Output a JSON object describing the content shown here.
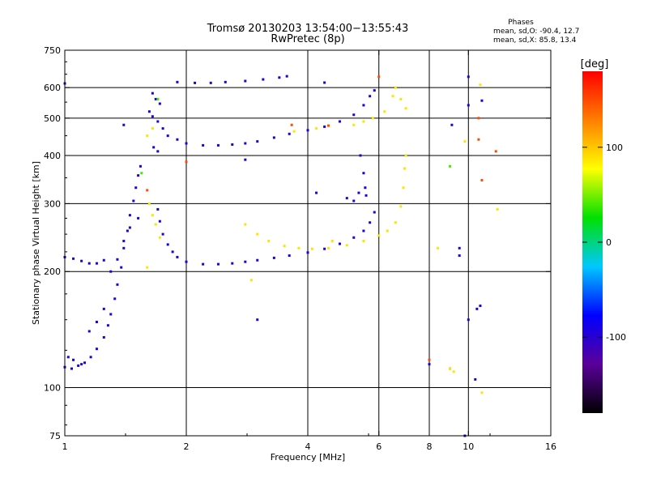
{
  "chart_data": {
    "type": "scatter",
    "title": "Tromsø 20130203 13:54:00−13:55:43",
    "subtitle": "RwPretec (8p)",
    "xlabel": "Frequency [MHz]",
    "ylabel": "Stationary phase Virtual Height [km]",
    "x_scale": "log2",
    "y_scale": "log",
    "xlim": [
      1,
      16
    ],
    "ylim": [
      75,
      750
    ],
    "x_ticks": [
      1,
      2,
      4,
      6,
      8,
      10,
      16
    ],
    "y_ticks": [
      75,
      100,
      200,
      300,
      400,
      500,
      600,
      750
    ],
    "x_grid": [
      2,
      4,
      6,
      8,
      10
    ],
    "y_grid": [
      100,
      200,
      300,
      400,
      500,
      600
    ],
    "grid": true,
    "colorbar": {
      "label": "[deg]",
      "ticks": [
        100,
        0,
        -100
      ],
      "range": [
        -180,
        180
      ],
      "colors": [
        "#000000",
        "#5a0098",
        "#0000ff",
        "#00c8ff",
        "#00e000",
        "#ffff00",
        "#ff7f00",
        "#ff0000"
      ]
    },
    "phases": {
      "title": "Phases",
      "o_line": "mean, sd,O: -90.4, 12.7",
      "x_line": "mean, sd,X: 85.8, 13.4"
    },
    "series": [
      {
        "phase": -95,
        "color_note": "blue (O mode)",
        "points": [
          [
            1.0,
            113
          ],
          [
            1.04,
            112
          ],
          [
            1.08,
            114
          ],
          [
            1.12,
            116
          ],
          [
            1.16,
            120
          ],
          [
            1.2,
            126
          ],
          [
            1.25,
            135
          ],
          [
            1.28,
            145
          ],
          [
            1.3,
            155
          ],
          [
            1.33,
            170
          ],
          [
            1.35,
            185
          ],
          [
            1.38,
            205
          ],
          [
            1.4,
            230
          ],
          [
            1.43,
            255
          ],
          [
            1.45,
            280
          ],
          [
            1.48,
            305
          ],
          [
            1.5,
            330
          ],
          [
            1.52,
            355
          ],
          [
            1.54,
            375
          ],
          [
            1.52,
            275
          ],
          [
            1.45,
            260
          ],
          [
            1.4,
            240
          ],
          [
            1.35,
            215
          ],
          [
            1.3,
            200
          ],
          [
            1.0,
            218
          ],
          [
            1.05,
            216
          ],
          [
            1.1,
            213
          ],
          [
            1.15,
            210
          ],
          [
            1.2,
            210
          ],
          [
            1.25,
            214
          ],
          [
            1.7,
            290
          ],
          [
            1.72,
            270
          ],
          [
            1.75,
            250
          ],
          [
            1.8,
            235
          ],
          [
            1.85,
            225
          ],
          [
            1.9,
            218
          ],
          [
            2.0,
            212
          ],
          [
            2.2,
            209
          ],
          [
            2.4,
            209
          ],
          [
            2.6,
            210
          ],
          [
            2.8,
            212
          ],
          [
            3.0,
            214
          ],
          [
            3.3,
            217
          ],
          [
            3.6,
            220
          ],
          [
            4.0,
            224
          ],
          [
            4.4,
            229
          ],
          [
            4.8,
            236
          ],
          [
            5.2,
            245
          ],
          [
            5.5,
            255
          ],
          [
            5.7,
            268
          ],
          [
            5.85,
            285
          ],
          [
            5.4,
            400
          ],
          [
            5.5,
            360
          ],
          [
            5.55,
            330
          ],
          [
            5.58,
            315
          ],
          [
            5.2,
            305
          ],
          [
            5.35,
            320
          ],
          [
            5.0,
            310
          ],
          [
            1.62,
            520
          ],
          [
            1.65,
            505
          ],
          [
            1.7,
            490
          ],
          [
            1.75,
            470
          ],
          [
            1.8,
            450
          ],
          [
            1.9,
            440
          ],
          [
            2.0,
            430
          ],
          [
            2.2,
            425
          ],
          [
            2.4,
            425
          ],
          [
            2.6,
            427
          ],
          [
            2.8,
            430
          ],
          [
            3.0,
            435
          ],
          [
            3.3,
            445
          ],
          [
            3.6,
            455
          ],
          [
            4.0,
            465
          ],
          [
            4.4,
            475
          ],
          [
            4.8,
            490
          ],
          [
            5.2,
            510
          ],
          [
            5.5,
            540
          ],
          [
            5.7,
            570
          ],
          [
            5.85,
            590
          ],
          [
            1.65,
            580
          ],
          [
            1.68,
            560
          ],
          [
            1.72,
            545
          ],
          [
            1.9,
            620
          ],
          [
            2.1,
            617
          ],
          [
            2.3,
            617
          ],
          [
            2.5,
            620
          ],
          [
            2.8,
            624
          ],
          [
            3.1,
            630
          ],
          [
            3.4,
            637
          ],
          [
            3.55,
            642
          ],
          [
            1.0,
            615
          ],
          [
            4.4,
            618
          ],
          [
            1.4,
            480
          ],
          [
            1.66,
            420
          ],
          [
            1.7,
            410
          ],
          [
            1.02,
            120
          ],
          [
            1.05,
            118
          ],
          [
            1.1,
            115
          ],
          [
            1.15,
            140
          ],
          [
            1.2,
            148
          ],
          [
            1.25,
            160
          ],
          [
            10.0,
            640
          ],
          [
            10.0,
            540
          ],
          [
            10.8,
            555
          ],
          [
            9.1,
            480
          ],
          [
            8.0,
            115
          ],
          [
            9.0,
            112
          ],
          [
            9.5,
            230
          ],
          [
            9.5,
            220
          ],
          [
            10.0,
            150
          ],
          [
            10.5,
            160
          ],
          [
            10.7,
            163
          ],
          [
            10.4,
            105
          ],
          [
            9.8,
            75
          ],
          [
            4.2,
            320
          ],
          [
            2.8,
            390
          ],
          [
            3.0,
            150
          ]
        ]
      },
      {
        "phase": 88,
        "color_note": "yellow (X mode)",
        "points": [
          [
            2.8,
            265
          ],
          [
            3.0,
            250
          ],
          [
            3.2,
            240
          ],
          [
            3.5,
            233
          ],
          [
            3.8,
            230
          ],
          [
            4.1,
            229
          ],
          [
            4.5,
            230
          ],
          [
            5.0,
            234
          ],
          [
            5.5,
            240
          ],
          [
            6.0,
            248
          ],
          [
            6.3,
            255
          ],
          [
            6.6,
            268
          ],
          [
            6.8,
            295
          ],
          [
            6.9,
            330
          ],
          [
            6.95,
            370
          ],
          [
            7.0,
            400
          ],
          [
            1.65,
            280
          ],
          [
            1.68,
            265
          ],
          [
            1.72,
            245
          ],
          [
            1.62,
            300
          ],
          [
            5.2,
            480
          ],
          [
            5.5,
            490
          ],
          [
            5.8,
            500
          ],
          [
            6.2,
            520
          ],
          [
            6.5,
            570
          ],
          [
            6.6,
            600
          ],
          [
            7.0,
            530
          ],
          [
            6.8,
            560
          ],
          [
            1.6,
            450
          ],
          [
            1.65,
            470
          ],
          [
            2.9,
            190
          ],
          [
            4.6,
            240
          ],
          [
            3.7,
            462
          ],
          [
            4.2,
            470
          ],
          [
            9.2,
            110
          ],
          [
            9.8,
            435
          ],
          [
            8.4,
            230
          ],
          [
            10.8,
            97
          ],
          [
            11.8,
            290
          ],
          [
            10.7,
            610
          ],
          [
            9.0,
            112
          ],
          [
            1.6,
            205
          ]
        ]
      },
      {
        "phase": 40,
        "color_note": "green",
        "points": [
          [
            9.0,
            375
          ],
          [
            1.55,
            360
          ],
          [
            1.7,
            560
          ]
        ]
      },
      {
        "phase": 150,
        "color_note": "orange-red",
        "points": [
          [
            3.65,
            480
          ],
          [
            6.0,
            640
          ],
          [
            10.6,
            500
          ],
          [
            10.6,
            440
          ],
          [
            10.8,
            345
          ],
          [
            11.7,
            410
          ],
          [
            8.0,
            118
          ],
          [
            2.0,
            385
          ],
          [
            1.6,
            325
          ],
          [
            4.5,
            478
          ]
        ]
      }
    ]
  }
}
